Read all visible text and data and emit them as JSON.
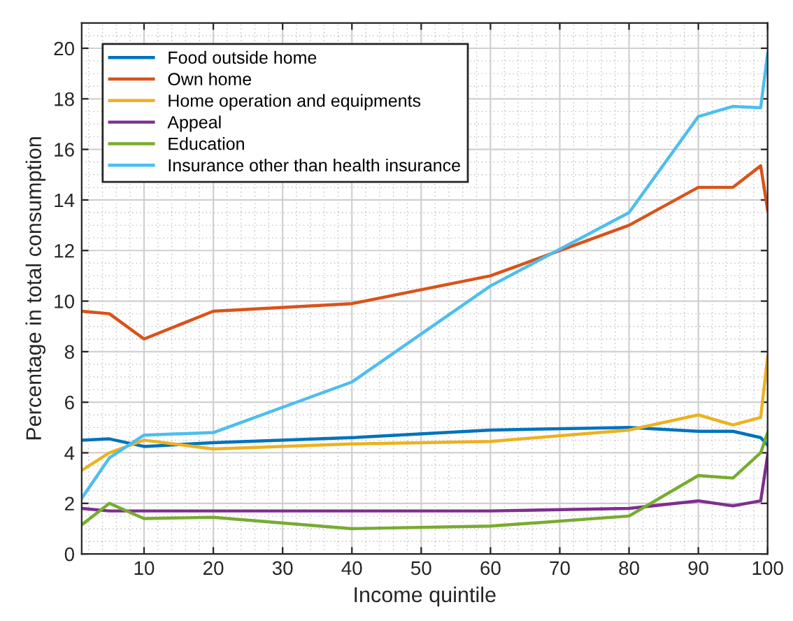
{
  "chart_data": {
    "type": "line",
    "xlabel": "Income quintile",
    "ylabel": "Percentage in total consumption",
    "x": [
      1,
      5,
      10,
      20,
      40,
      60,
      80,
      90,
      95,
      99,
      100
    ],
    "xlim": [
      1,
      100
    ],
    "xticks": [
      10,
      20,
      30,
      40,
      50,
      60,
      70,
      80,
      90,
      100
    ],
    "ylim": [
      0,
      21
    ],
    "yticks": [
      0,
      2,
      4,
      6,
      8,
      10,
      12,
      14,
      16,
      18,
      20
    ],
    "grid": true,
    "legend": "top left",
    "marker": "none",
    "line_style": "solid",
    "series": [
      {
        "name": "Food outside home",
        "color": "#0072bd",
        "values": [
          4.5,
          4.55,
          4.25,
          4.4,
          4.6,
          4.9,
          5.0,
          4.85,
          4.85,
          4.6,
          4.3
        ]
      },
      {
        "name": "Own home",
        "color": "#d95319",
        "values": [
          9.6,
          9.5,
          8.5,
          9.6,
          9.9,
          11.0,
          13.0,
          14.5,
          14.5,
          15.35,
          13.6
        ]
      },
      {
        "name": "Home operation and equipments",
        "color": "#edb120",
        "values": [
          3.3,
          4.0,
          4.5,
          4.15,
          4.35,
          4.45,
          4.9,
          5.5,
          5.1,
          5.4,
          7.8
        ]
      },
      {
        "name": "Appeal",
        "color": "#7e2f8e",
        "values": [
          1.8,
          1.7,
          1.7,
          1.7,
          1.7,
          1.7,
          1.8,
          2.1,
          1.9,
          2.1,
          3.9
        ]
      },
      {
        "name": "Education",
        "color": "#77ac30",
        "values": [
          1.15,
          2.0,
          1.4,
          1.45,
          1.0,
          1.1,
          1.5,
          3.1,
          3.0,
          4.0,
          4.8
        ]
      },
      {
        "name": "Insurance other than health insurance",
        "color": "#4dbeee",
        "values": [
          2.2,
          3.8,
          4.7,
          4.8,
          6.8,
          10.6,
          13.5,
          17.3,
          17.7,
          17.65,
          19.8
        ]
      }
    ]
  }
}
